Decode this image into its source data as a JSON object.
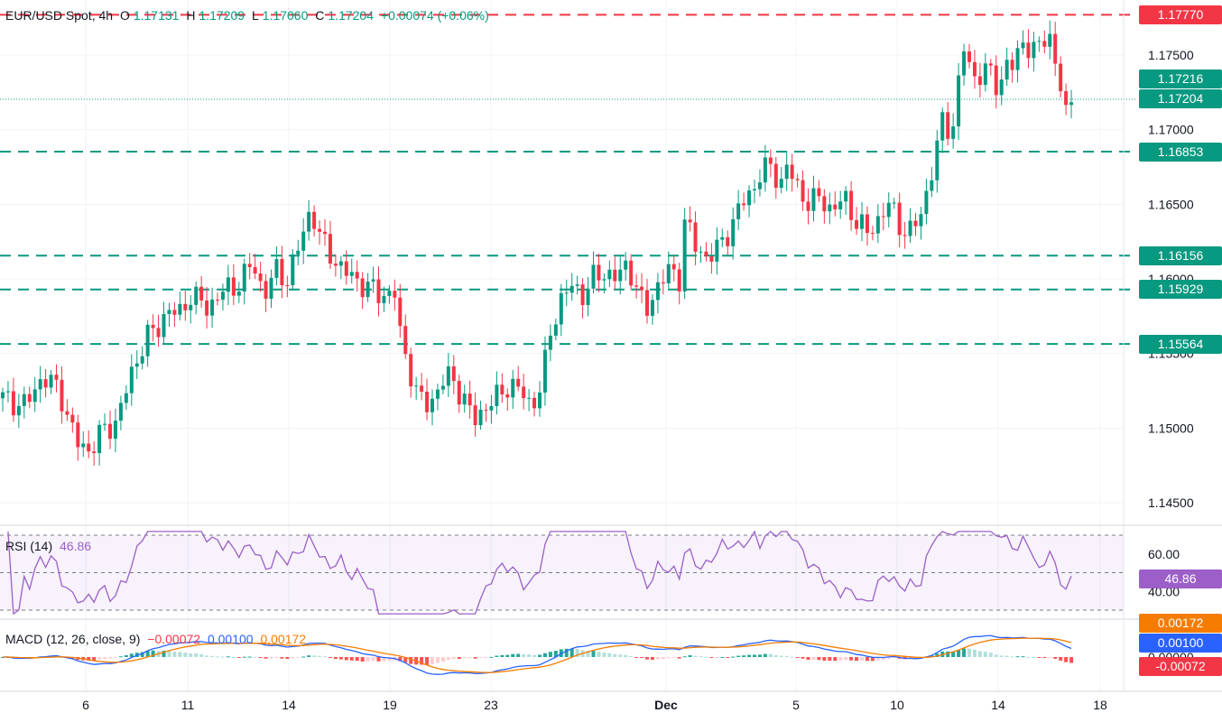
{
  "legend": {
    "symbol": "EUR/USD Spot, 4h",
    "o_label": "O",
    "o_val": "1.17131",
    "h_label": "H",
    "h_val": "1.17209",
    "l_label": "L",
    "l_val": "1.17060",
    "c_label": "C",
    "c_val": "1.17204",
    "change": "+0.00074 (+0.06%)"
  },
  "rsi_legend": {
    "label": "RSI (14)",
    "value": "46.86"
  },
  "macd_legend": {
    "label": "MACD (12, 26, close, 9)",
    "hist": "−0.00072",
    "macd": "0.00100",
    "signal": "0.00172"
  },
  "colors": {
    "up": "#089981",
    "down": "#f23645",
    "rsi": "#9c5fc7",
    "macd": "#2962ff",
    "signal": "#f57c00"
  },
  "price_ticks": [
    "1.17500",
    "1.17000",
    "1.16500",
    "1.16000",
    "1.15500",
    "1.15000",
    "1.14500"
  ],
  "rsi_ticks": [
    "60.00",
    "40.00"
  ],
  "macd_ticks": [
    "0.00000"
  ],
  "x_ticks": [
    "6",
    "11",
    "14",
    "19",
    "23",
    "Dec",
    "5",
    "10",
    "14",
    "18"
  ],
  "price_boxes": {
    "resistance": "1.17770",
    "bid": "1.17216",
    "last": "1.17204",
    "s1": "1.16853",
    "s2": "1.16156",
    "s3": "1.15929",
    "s4": "1.15564",
    "rsi": "46.86",
    "macd_signal": "0.00172",
    "macd_line": "0.00100",
    "macd_hist": "-0.00072"
  },
  "chart_data": {
    "type": "candlestick",
    "title": "EUR/USD Spot, 4h",
    "x_ticks": [
      "6",
      "11",
      "14",
      "19",
      "23",
      "Dec",
      "5",
      "10",
      "14",
      "18"
    ],
    "ylim": [
      1.1425,
      1.179
    ],
    "horizontal_levels": [
      {
        "value": 1.1777,
        "style": "dashed",
        "color": "#f23645"
      },
      {
        "value": 1.16853,
        "style": "dashed",
        "color": "#089981"
      },
      {
        "value": 1.16156,
        "style": "dashed",
        "color": "#089981"
      },
      {
        "value": 1.15929,
        "style": "dashed",
        "color": "#089981"
      },
      {
        "value": 1.15564,
        "style": "dashed",
        "color": "#089981"
      },
      {
        "value": 1.17204,
        "style": "dotted",
        "color": "#089981"
      }
    ],
    "close_path": [
      [
        0,
        1.152
      ],
      [
        8,
        1.1515
      ],
      [
        14,
        1.1535
      ],
      [
        20,
        1.1525
      ],
      [
        26,
        1.149
      ],
      [
        30,
        1.1485
      ],
      [
        34,
        1.1495
      ],
      [
        40,
        1.1505
      ],
      [
        46,
        1.154
      ],
      [
        50,
        1.156
      ],
      [
        54,
        1.1565
      ],
      [
        58,
        1.158
      ],
      [
        62,
        1.1575
      ],
      [
        66,
        1.159
      ],
      [
        72,
        1.158
      ],
      [
        76,
        1.159
      ],
      [
        82,
        1.1595
      ],
      [
        88,
        1.161
      ],
      [
        92,
        1.159
      ],
      [
        96,
        1.1605
      ],
      [
        100,
        1.16
      ],
      [
        104,
        1.162
      ],
      [
        108,
        1.1645
      ],
      [
        110,
        1.164
      ],
      [
        112,
        1.1625
      ],
      [
        116,
        1.1615
      ],
      [
        120,
        1.1605
      ],
      [
        124,
        1.16
      ],
      [
        128,
        1.1595
      ],
      [
        132,
        1.159
      ],
      [
        138,
        1.159
      ],
      [
        140,
        1.156
      ],
      [
        144,
        1.1535
      ],
      [
        146,
        1.152
      ],
      [
        150,
        1.1515
      ],
      [
        154,
        1.153
      ],
      [
        158,
        1.1535
      ],
      [
        162,
        1.152
      ],
      [
        166,
        1.1505
      ],
      [
        170,
        1.1515
      ],
      [
        174,
        1.152
      ],
      [
        178,
        1.153
      ],
      [
        182,
        1.1525
      ],
      [
        186,
        1.1515
      ],
      [
        190,
        1.153
      ],
      [
        192,
        1.156
      ],
      [
        196,
        1.1585
      ],
      [
        200,
        1.1595
      ],
      [
        204,
        1.159
      ],
      [
        208,
        1.16
      ],
      [
        212,
        1.1605
      ],
      [
        216,
        1.16
      ],
      [
        220,
        1.161
      ],
      [
        224,
        1.159
      ],
      [
        226,
        1.1575
      ],
      [
        230,
        1.1595
      ],
      [
        234,
        1.1605
      ],
      [
        238,
        1.16
      ],
      [
        240,
        1.164
      ],
      [
        244,
        1.162
      ],
      [
        248,
        1.1615
      ],
      [
        252,
        1.162
      ],
      [
        256,
        1.1635
      ],
      [
        260,
        1.165
      ],
      [
        264,
        1.166
      ],
      [
        266,
        1.167
      ],
      [
        270,
        1.1675
      ],
      [
        274,
        1.1665
      ],
      [
        276,
        1.1675
      ],
      [
        280,
        1.166
      ],
      [
        284,
        1.165
      ],
      [
        288,
        1.1655
      ],
      [
        292,
        1.1645
      ],
      [
        296,
        1.1655
      ],
      [
        300,
        1.164
      ],
      [
        304,
        1.163
      ],
      [
        308,
        1.164
      ],
      [
        312,
        1.165
      ],
      [
        316,
        1.1635
      ],
      [
        320,
        1.163
      ],
      [
        324,
        1.165
      ],
      [
        328,
        1.168
      ],
      [
        330,
        1.1705
      ],
      [
        334,
        1.17
      ],
      [
        336,
        1.1725
      ],
      [
        338,
        1.1755
      ],
      [
        340,
        1.1745
      ],
      [
        342,
        1.1735
      ],
      [
        346,
        1.174
      ],
      [
        350,
        1.173
      ],
      [
        354,
        1.1745
      ],
      [
        356,
        1.174
      ],
      [
        358,
        1.176
      ],
      [
        362,
        1.1755
      ],
      [
        364,
        1.175
      ],
      [
        366,
        1.176
      ],
      [
        368,
        1.177
      ],
      [
        370,
        1.1745
      ],
      [
        372,
        1.173
      ],
      [
        374,
        1.171
      ],
      [
        376,
        1.172
      ]
    ],
    "rsi": {
      "name": "RSI (14)",
      "value": 46.86,
      "levels": [
        70,
        50,
        30
      ],
      "ylim": [
        25,
        75
      ]
    },
    "macd": {
      "name": "MACD (12, 26, close, 9)",
      "hist": -0.00072,
      "macd": 0.001,
      "signal": 0.00172
    }
  }
}
